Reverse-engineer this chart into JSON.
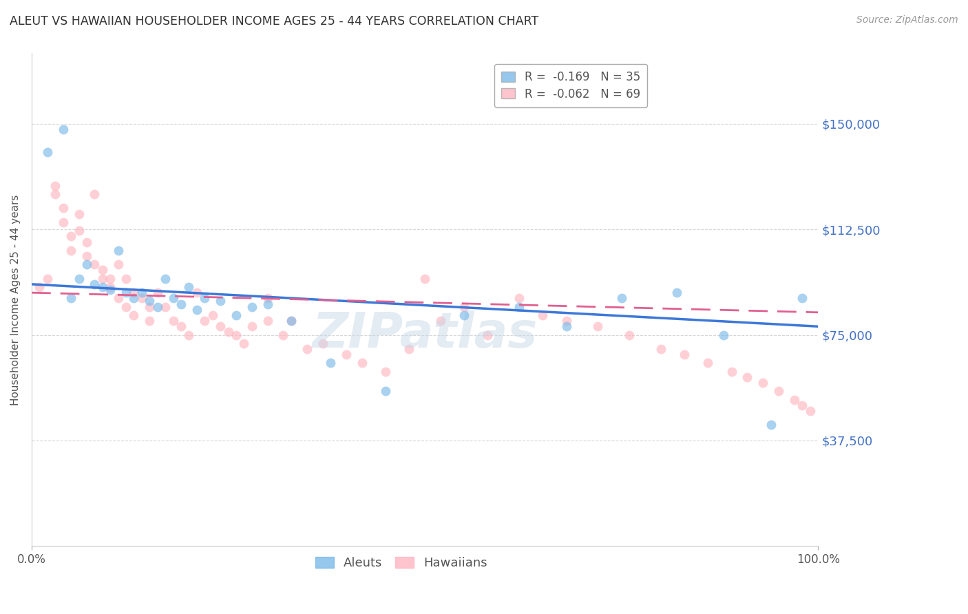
{
  "title": "ALEUT VS HAWAIIAN HOUSEHOLDER INCOME AGES 25 - 44 YEARS CORRELATION CHART",
  "source": "Source: ZipAtlas.com",
  "ylabel": "Householder Income Ages 25 - 44 years",
  "xlim": [
    0.0,
    1.0
  ],
  "ylim": [
    0,
    175000
  ],
  "yticks": [
    37500,
    75000,
    112500,
    150000
  ],
  "ytick_labels": [
    "$37,500",
    "$75,000",
    "$112,500",
    "$150,000"
  ],
  "legend_r_entries": [
    {
      "label": "R =  -0.169   N = 35",
      "color": "#7cb9e8"
    },
    {
      "label": "R =  -0.062   N = 69",
      "color": "#ffb6c1"
    }
  ],
  "aleut_color": "#7cb9e8",
  "hawaiian_color": "#ffb6c1",
  "aleut_line_color": "#3c78d8",
  "hawaiian_line_color": "#e06090",
  "background_color": "#ffffff",
  "grid_color": "#cccccc",
  "right_tick_color": "#4472c4",
  "marker_size": 100,
  "alpha": 0.65,
  "aleuts_x": [
    0.02,
    0.04,
    0.05,
    0.06,
    0.07,
    0.08,
    0.09,
    0.1,
    0.11,
    0.12,
    0.13,
    0.14,
    0.15,
    0.16,
    0.17,
    0.18,
    0.19,
    0.2,
    0.21,
    0.22,
    0.24,
    0.26,
    0.28,
    0.3,
    0.33,
    0.38,
    0.45,
    0.55,
    0.62,
    0.68,
    0.75,
    0.82,
    0.88,
    0.94,
    0.98
  ],
  "aleuts_y": [
    140000,
    148000,
    88000,
    95000,
    100000,
    93000,
    92000,
    91000,
    105000,
    90000,
    88000,
    90000,
    87000,
    85000,
    95000,
    88000,
    86000,
    92000,
    84000,
    88000,
    87000,
    82000,
    85000,
    86000,
    80000,
    65000,
    55000,
    82000,
    85000,
    78000,
    88000,
    90000,
    75000,
    43000,
    88000
  ],
  "hawaiians_x": [
    0.01,
    0.02,
    0.03,
    0.03,
    0.04,
    0.04,
    0.05,
    0.05,
    0.06,
    0.06,
    0.07,
    0.07,
    0.08,
    0.08,
    0.09,
    0.09,
    0.1,
    0.1,
    0.11,
    0.11,
    0.12,
    0.12,
    0.13,
    0.13,
    0.14,
    0.15,
    0.15,
    0.16,
    0.17,
    0.18,
    0.19,
    0.2,
    0.21,
    0.22,
    0.23,
    0.24,
    0.25,
    0.26,
    0.27,
    0.28,
    0.3,
    0.3,
    0.32,
    0.33,
    0.35,
    0.37,
    0.4,
    0.42,
    0.45,
    0.48,
    0.5,
    0.52,
    0.55,
    0.58,
    0.62,
    0.65,
    0.68,
    0.72,
    0.76,
    0.8,
    0.83,
    0.86,
    0.89,
    0.91,
    0.93,
    0.95,
    0.97,
    0.98,
    0.99
  ],
  "hawaiians_y": [
    92000,
    95000,
    128000,
    125000,
    120000,
    115000,
    110000,
    105000,
    118000,
    112000,
    108000,
    103000,
    125000,
    100000,
    98000,
    95000,
    95000,
    92000,
    100000,
    88000,
    95000,
    85000,
    90000,
    82000,
    88000,
    85000,
    80000,
    90000,
    85000,
    80000,
    78000,
    75000,
    90000,
    80000,
    82000,
    78000,
    76000,
    75000,
    72000,
    78000,
    88000,
    80000,
    75000,
    80000,
    70000,
    72000,
    68000,
    65000,
    62000,
    70000,
    95000,
    80000,
    85000,
    75000,
    88000,
    82000,
    80000,
    78000,
    75000,
    70000,
    68000,
    65000,
    62000,
    60000,
    58000,
    55000,
    52000,
    50000,
    48000
  ]
}
